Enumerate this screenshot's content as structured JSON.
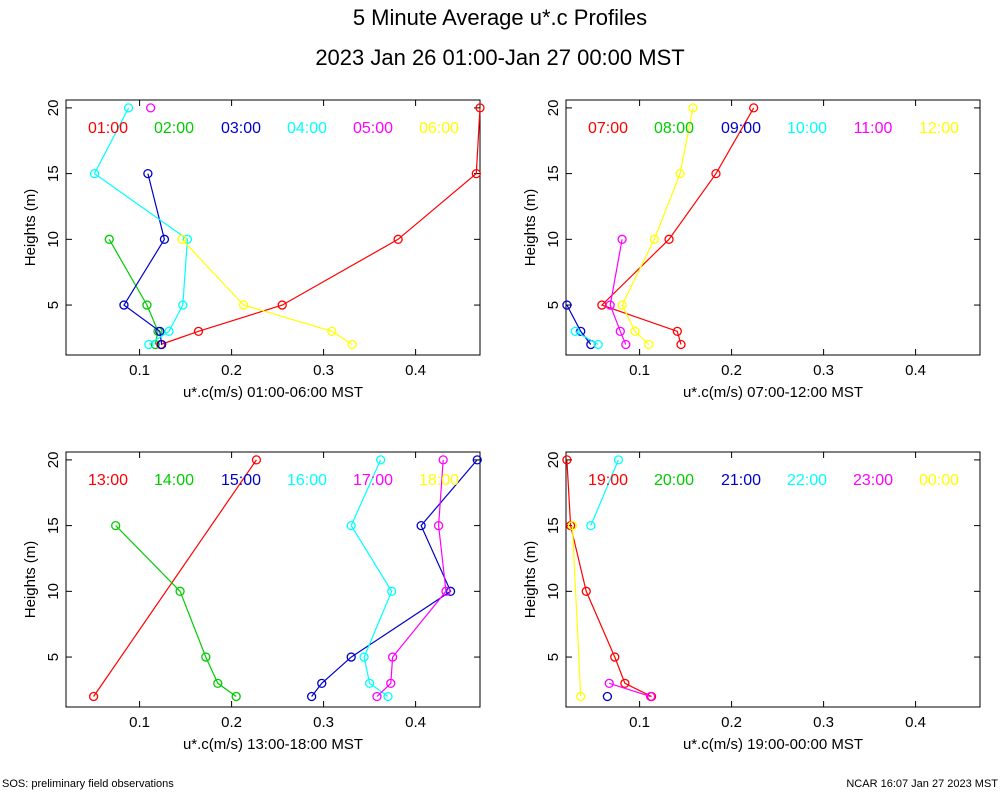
{
  "title": "5 Minute Average u*.c Profiles",
  "subtitle": "2023 Jan 26 01:00-Jan 27 00:00 MST",
  "footer_left": "SOS: preliminary field observations",
  "footer_right": "NCAR 16:07 Jan 27 2023 MST",
  "colors": [
    "#ff0000",
    "#00cc00",
    "#0000cc",
    "#00ffff",
    "#ff00ff",
    "#ffff00"
  ],
  "chart_data": [
    {
      "type": "line",
      "xlabel": "u*.c(m/s) 01:00-06:00 MST",
      "ylabel": "Heights (m)",
      "xlim": [
        0.02,
        0.47
      ],
      "ylim": [
        1.2,
        20.6
      ],
      "xticks": [
        0.1,
        0.2,
        0.3,
        0.4
      ],
      "xtick_labels": [
        "0.1",
        "0.2",
        "0.3",
        "0.4"
      ],
      "yticks": [
        5,
        10,
        15,
        20
      ],
      "ytick_labels": [
        "5",
        "10",
        "15",
        "20"
      ],
      "series": [
        {
          "name": "01:00",
          "points": [
            [
              0.123,
              2
            ],
            [
              0.164,
              3
            ],
            [
              0.255,
              5
            ],
            [
              0.381,
              10
            ],
            [
              0.466,
              15
            ],
            [
              0.47,
              20
            ]
          ]
        },
        {
          "name": "02:00",
          "points": [
            [
              0.117,
              2
            ],
            [
              0.12,
              3
            ],
            [
              0.108,
              5
            ],
            [
              0.067,
              10
            ]
          ]
        },
        {
          "name": "03:00",
          "points": [
            [
              0.124,
              2
            ],
            [
              0.122,
              3
            ],
            [
              0.083,
              5
            ],
            [
              0.127,
              10
            ],
            [
              0.109,
              15
            ]
          ]
        },
        {
          "name": "04:00",
          "points": [
            [
              0.11,
              2
            ],
            [
              0.132,
              3
            ],
            [
              0.147,
              5
            ],
            [
              0.152,
              10
            ],
            [
              0.051,
              15
            ],
            [
              0.088,
              20
            ]
          ]
        },
        {
          "name": "05:00",
          "points": [
            [
              0.112,
              20
            ]
          ]
        },
        {
          "name": "06:00",
          "points": [
            [
              0.331,
              2
            ],
            [
              0.309,
              3
            ],
            [
              0.213,
              5
            ],
            [
              0.146,
              10
            ]
          ]
        }
      ]
    },
    {
      "type": "line",
      "xlabel": "u*.c(m/s) 07:00-12:00 MST",
      "ylabel": "Heights (m)",
      "xlim": [
        0.02,
        0.47
      ],
      "ylim": [
        1.2,
        20.6
      ],
      "xticks": [
        0.1,
        0.2,
        0.3,
        0.4
      ],
      "xtick_labels": [
        "0.1",
        "0.2",
        "0.3",
        "0.4"
      ],
      "yticks": [
        5,
        10,
        15,
        20
      ],
      "ytick_labels": [
        "5",
        "10",
        "15",
        "20"
      ],
      "series": [
        {
          "name": "07:00",
          "points": [
            [
              0.145,
              2
            ],
            [
              0.141,
              3
            ],
            [
              0.059,
              5
            ],
            [
              0.132,
              10
            ],
            [
              0.183,
              15
            ],
            [
              0.224,
              20
            ]
          ]
        },
        {
          "name": "08:00",
          "points": []
        },
        {
          "name": "09:00",
          "points": [
            [
              0.047,
              2
            ],
            [
              0.036,
              3
            ],
            [
              0.021,
              5
            ]
          ]
        },
        {
          "name": "10:00",
          "points": [
            [
              0.055,
              2
            ],
            [
              0.03,
              3
            ]
          ]
        },
        {
          "name": "11:00",
          "points": [
            [
              0.085,
              2
            ],
            [
              0.079,
              3
            ],
            [
              0.068,
              5
            ],
            [
              0.081,
              10
            ]
          ]
        },
        {
          "name": "12:00",
          "points": [
            [
              0.11,
              2
            ],
            [
              0.095,
              3
            ],
            [
              0.081,
              5
            ],
            [
              0.116,
              10
            ],
            [
              0.144,
              15
            ],
            [
              0.158,
              20
            ]
          ]
        }
      ]
    },
    {
      "type": "line",
      "xlabel": "u*.c(m/s) 13:00-18:00 MST",
      "ylabel": "Heights (m)",
      "xlim": [
        0.02,
        0.47
      ],
      "ylim": [
        1.2,
        20.6
      ],
      "xticks": [
        0.1,
        0.2,
        0.3,
        0.4
      ],
      "xtick_labels": [
        "0.1",
        "0.2",
        "0.3",
        "0.4"
      ],
      "yticks": [
        5,
        10,
        15,
        20
      ],
      "ytick_labels": [
        "5",
        "10",
        "15",
        "20"
      ],
      "series": [
        {
          "name": "13:00",
          "points": [
            [
              0.05,
              2
            ],
            [
              0.227,
              20
            ]
          ]
        },
        {
          "name": "14:00",
          "points": [
            [
              0.205,
              2
            ],
            [
              0.185,
              3
            ],
            [
              0.172,
              5
            ],
            [
              0.144,
              10
            ],
            [
              0.074,
              15
            ]
          ]
        },
        {
          "name": "15:00",
          "points": [
            [
              0.287,
              2
            ],
            [
              0.298,
              3
            ],
            [
              0.33,
              5
            ],
            [
              0.438,
              10
            ],
            [
              0.406,
              15
            ],
            [
              0.467,
              20
            ]
          ]
        },
        {
          "name": "16:00",
          "points": [
            [
              0.37,
              2
            ],
            [
              0.35,
              3
            ],
            [
              0.344,
              5
            ],
            [
              0.374,
              10
            ],
            [
              0.33,
              15
            ],
            [
              0.362,
              20
            ]
          ]
        },
        {
          "name": "17:00",
          "points": [
            [
              0.358,
              2
            ],
            [
              0.373,
              3
            ],
            [
              0.375,
              5
            ],
            [
              0.433,
              10
            ],
            [
              0.425,
              15
            ],
            [
              0.43,
              20
            ]
          ]
        },
        {
          "name": "18:00",
          "points": []
        }
      ]
    },
    {
      "type": "line",
      "xlabel": "u*.c(m/s) 19:00-00:00 MST",
      "ylabel": "Heights (m)",
      "xlim": [
        0.02,
        0.47
      ],
      "ylim": [
        1.2,
        20.6
      ],
      "xticks": [
        0.1,
        0.2,
        0.3,
        0.4
      ],
      "xtick_labels": [
        "0.1",
        "0.2",
        "0.3",
        "0.4"
      ],
      "yticks": [
        5,
        10,
        15,
        20
      ],
      "ytick_labels": [
        "5",
        "10",
        "15",
        "20"
      ],
      "series": [
        {
          "name": "19:00",
          "points": [
            [
              0.113,
              2
            ],
            [
              0.084,
              3
            ],
            [
              0.073,
              5
            ],
            [
              0.042,
              10
            ],
            [
              0.025,
              15
            ],
            [
              0.021,
              20
            ]
          ]
        },
        {
          "name": "20:00",
          "points": []
        },
        {
          "name": "21:00",
          "points": [
            [
              0.065,
              2
            ]
          ]
        },
        {
          "name": "22:00",
          "points": [
            [
              0.047,
              15
            ],
            [
              0.077,
              20
            ]
          ]
        },
        {
          "name": "23:00",
          "points": [
            [
              0.112,
              2
            ],
            [
              0.067,
              3
            ]
          ]
        },
        {
          "name": "00:00",
          "points": [
            [
              0.036,
              2
            ],
            [
              0.027,
              15
            ]
          ]
        }
      ]
    }
  ]
}
